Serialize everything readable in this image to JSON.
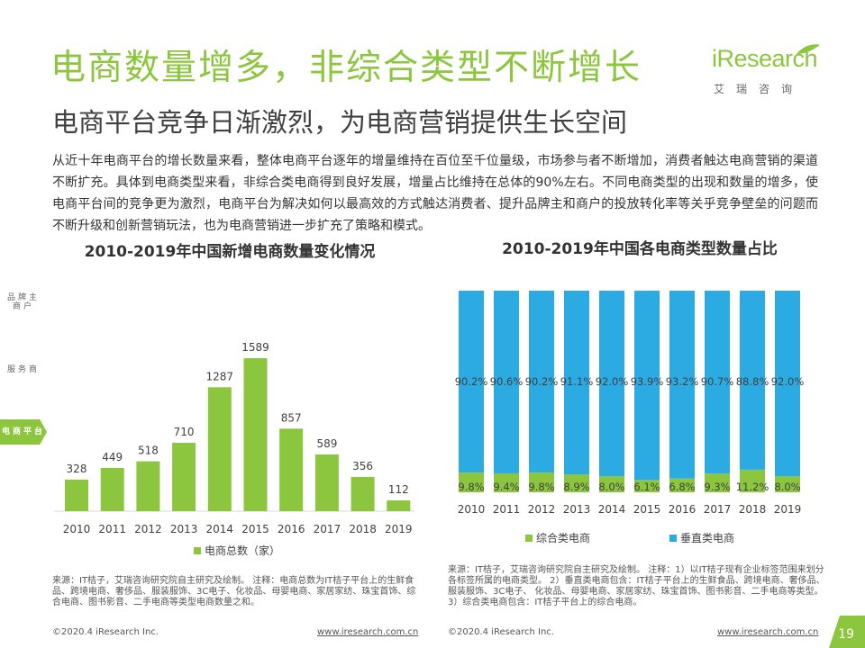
{
  "header": {
    "title": "电商数量增多，非综合类型不断增长",
    "subtitle": "电商平台竞争日渐激烈，为电商营销提供生长空间",
    "logo_text": "iResearch",
    "logo_cn": "艾瑞咨询"
  },
  "intro_text": "从近十年电商平台的增长数量来看，整体电商平台逐年的增量维持在百位至千位量级，市场参与者不断增加，消费者触达电商营销的渠道不断扩充。具体到电商类型来看，非综合类电商得到良好发展，增量占比维持在总体的90%左右。不同电商类型的出现和数量的增多，使电商平台间的竞争更为激烈，电商平台为解决如何以最高效的方式触达消费者、提升品牌主和商户的投放转化率等关乎竞争壁垒的问题而不断升级和创新营销玩法，也为电商营销进一步扩充了策略和模式。",
  "side_nav": [
    {
      "label": "品牌主\n商户",
      "active": false
    },
    {
      "label": "服务商",
      "active": false
    },
    {
      "label": "电商平台",
      "active": true
    }
  ],
  "colors": {
    "green": "#8cc63f",
    "blue": "#2cabe3",
    "title_green": "#8cc63f"
  },
  "chart_data": [
    {
      "type": "bar",
      "title": "2010-2019年中国新增电商数量变化情况",
      "categories": [
        "2010",
        "2011",
        "2012",
        "2013",
        "2014",
        "2015",
        "2016",
        "2017",
        "2018",
        "2019"
      ],
      "series": [
        {
          "name": "电商总数（家）",
          "values": [
            328,
            449,
            518,
            710,
            1287,
            1589,
            857,
            589,
            356,
            112
          ],
          "color": "#8cc63f"
        }
      ],
      "legend_position": "bottom",
      "grid": false
    },
    {
      "type": "bar",
      "stacked": true,
      "percent": true,
      "title": "2010-2019年中国各电商类型数量占比",
      "categories": [
        "2010",
        "2011",
        "2012",
        "2013",
        "2014",
        "2015",
        "2016",
        "2017",
        "2018",
        "2019"
      ],
      "series": [
        {
          "name": "综合类电商",
          "values": [
            9.8,
            9.4,
            9.8,
            8.9,
            8.0,
            6.1,
            6.8,
            9.3,
            11.2,
            8.0
          ],
          "labels": [
            "9.8%",
            "9.4%",
            "9.8%",
            "8.9%",
            "8.0%",
            "6.1%",
            "6.8%",
            "9.3%",
            "11.2%",
            "8.0%"
          ],
          "color": "#8cc63f"
        },
        {
          "name": "垂直类电商",
          "values": [
            90.2,
            90.6,
            90.2,
            91.1,
            92.0,
            93.9,
            93.2,
            90.7,
            88.8,
            92.0
          ],
          "labels": [
            "90.2%",
            "90.6%",
            "90.2%",
            "91.1%",
            "92.0%",
            "93.9%",
            "93.2%",
            "90.7%",
            "88.8%",
            "92.0%"
          ],
          "color": "#2cabe3"
        }
      ],
      "ylim": [
        0,
        100
      ],
      "legend_position": "bottom",
      "grid": false
    }
  ],
  "notes": {
    "left": "来源：IT桔子，艾瑞咨询研究院自主研究及绘制。 注释：电商总数为IT桔子平台上的生鲜食品、跨境电商、奢侈品、服装服饰、3C电子、化妆品、母婴电商、家居家纺、珠宝首饰、综合电商、图书影音、二手电商等类型电商数量之和。",
    "right": "来源：IT桔子，艾瑞咨询研究院自主研究及绘制。 注释：1）以IT桔子现有企业标签范围来划分各标签所属的电商类型。 2）垂直类电商包含：IT桔子平台上的生鲜食品、跨境电商、奢侈品、服装服饰、3C电子、 化妆品、母婴电商、家居家纺、珠宝首饰、图书影音、二手电商等类型。\n3）综合类电商包含：IT桔子平台上的综合电商。"
  },
  "footer": {
    "copyright_left": "©2020.4 iResearch Inc.",
    "url_left": "www.iresearch.com.cn",
    "copyright_right": "©2020.4 iResearch Inc.",
    "url_right": "www.iresearch.com.cn",
    "page_number": "19"
  }
}
